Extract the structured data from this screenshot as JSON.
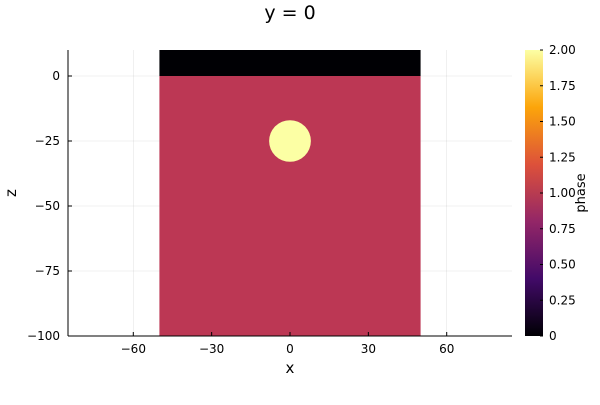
{
  "chart_data": {
    "type": "heatmap",
    "title": "y = 0",
    "xlabel": "x",
    "ylabel": "z",
    "xlim": [
      -85,
      85
    ],
    "ylim": [
      -100,
      10
    ],
    "xticks": [
      -60,
      -30,
      0,
      30,
      60
    ],
    "xtick_labels": [
      "−60",
      "−30",
      "0",
      "30",
      "60"
    ],
    "yticks": [
      0,
      -25,
      -50,
      -75,
      -100
    ],
    "ytick_labels": [
      "0",
      "−25",
      "−50",
      "−75",
      "−100"
    ],
    "grid": true,
    "colorbar": {
      "label": "phase",
      "range": [
        0,
        2
      ],
      "ticks": [
        0,
        0.25,
        0.5,
        0.75,
        1.0,
        1.25,
        1.5,
        1.75,
        2.0
      ],
      "tick_labels": [
        "0",
        "0.25",
        "0.50",
        "0.75",
        "1.00",
        "1.25",
        "1.50",
        "1.75",
        "2.00"
      ],
      "colormap": "inferno",
      "stops": [
        "#000004",
        "#420a68",
        "#932667",
        "#dd513a",
        "#fca50a",
        "#fcffa4"
      ]
    },
    "regions": [
      {
        "shape": "rect",
        "x_range": [
          -50,
          50
        ],
        "z_range": [
          -100,
          0
        ],
        "phase": 1.0,
        "color": "#bc3754"
      },
      {
        "shape": "rect",
        "x_range": [
          -50,
          50
        ],
        "z_range": [
          0,
          10
        ],
        "phase": 0.0,
        "color": "#000004"
      },
      {
        "shape": "circle",
        "center": [
          0,
          -25
        ],
        "radius": 8,
        "phase": 2.0,
        "color": "#fcffa4"
      }
    ]
  }
}
